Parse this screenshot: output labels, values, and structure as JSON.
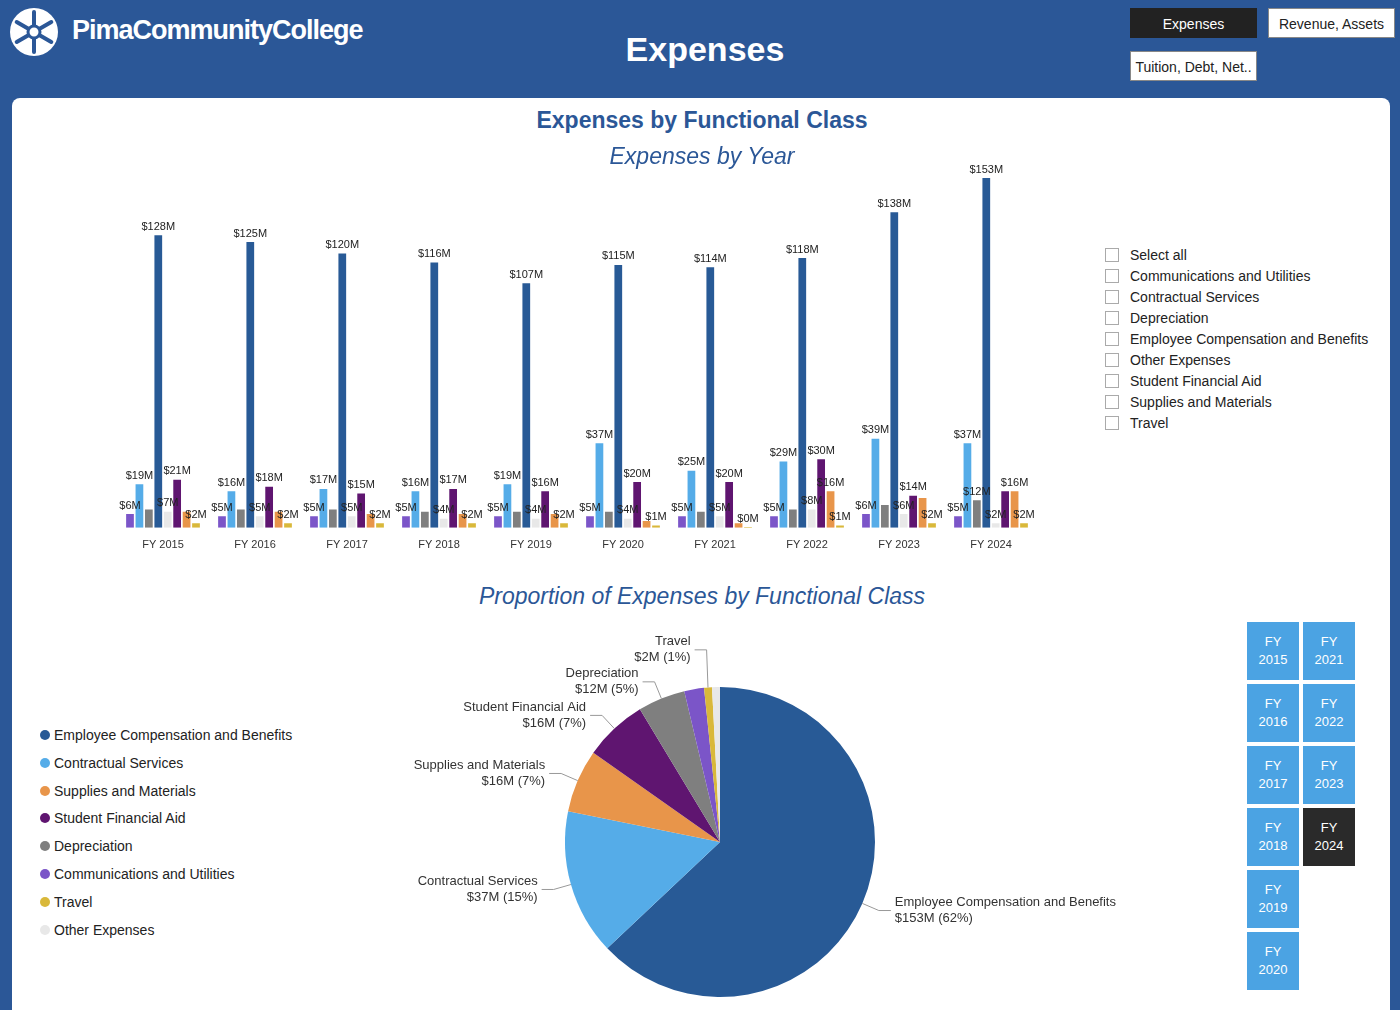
{
  "page": {
    "header": {
      "brand": "PimaCommunityCollege",
      "title": "Expenses"
    },
    "nav": [
      {
        "label": "Expenses",
        "active": true
      },
      {
        "label": "Revenue, Assets",
        "active": false
      },
      {
        "label": "Tuition, Debt, Net..",
        "active": false
      }
    ],
    "section_title": "Expenses by Functional Class",
    "filter": {
      "items": [
        "Select all",
        "Communications and Utilities",
        "Contractual Services",
        "Depreciation",
        "Employee Compensation and Benefits",
        "Other Expenses",
        "Student Financial Aid",
        "Supplies and Materials",
        "Travel"
      ]
    },
    "year_slicer": {
      "items": [
        "FY 2015",
        "FY 2016",
        "FY 2017",
        "FY 2018",
        "FY 2019",
        "FY 2020",
        "FY 2021",
        "FY 2022",
        "FY 2023",
        "FY 2024"
      ],
      "selected": "FY 2024"
    }
  },
  "chart_data": [
    {
      "type": "bar",
      "title": "Expenses by Year",
      "categories": [
        "FY 2015",
        "FY 2016",
        "FY 2017",
        "FY 2018",
        "FY 2019",
        "FY 2020",
        "FY 2021",
        "FY 2022",
        "FY 2023",
        "FY 2024"
      ],
      "series": [
        {
          "name": "Communications and Utilities",
          "color": "#7B55C8",
          "values": [
            6,
            5,
            5,
            5,
            5,
            5,
            5,
            5,
            6,
            5
          ],
          "value_labels": [
            "$6M",
            "$5M",
            "$5M",
            "$5M",
            "$5M",
            "$5M",
            "$5M",
            "$5M",
            "$6M",
            "$5M"
          ]
        },
        {
          "name": "Contractual Services",
          "color": "#55ACE8",
          "values": [
            19,
            16,
            17,
            16,
            19,
            37,
            25,
            29,
            39,
            37
          ],
          "value_labels": [
            "$19M",
            "$16M",
            "$17M",
            "$16M",
            "$19M",
            "$37M",
            "$25M",
            "$29M",
            "$39M",
            "$37M"
          ]
        },
        {
          "name": "Depreciation",
          "color": "#7F7F7F",
          "values": [
            8,
            8,
            8,
            7,
            7,
            7,
            7,
            8,
            10,
            12
          ],
          "value_labels": [
            null,
            null,
            null,
            null,
            null,
            null,
            null,
            null,
            null,
            "$12M"
          ]
        },
        {
          "name": "Employee Compensation and Benefits",
          "color": "#285A96",
          "values": [
            128,
            125,
            120,
            116,
            107,
            115,
            114,
            118,
            138,
            153
          ],
          "value_labels": [
            "$128M",
            "$125M",
            "$120M",
            "$116M",
            "$107M",
            "$115M",
            "$114M",
            "$118M",
            "$138M",
            "$153M"
          ]
        },
        {
          "name": "Other Expenses",
          "color": "#E8E8E8",
          "values": [
            7,
            5,
            5,
            4,
            4,
            4,
            5,
            8,
            6,
            2
          ],
          "value_labels": [
            "$7M",
            "$5M",
            "$5M",
            "$4M",
            "$4M",
            "$4M",
            "$5M",
            "$8M",
            "$6M",
            "$2M"
          ]
        },
        {
          "name": "Student Financial Aid",
          "color": "#5F1570",
          "values": [
            21,
            18,
            15,
            17,
            16,
            20,
            20,
            30,
            14,
            16
          ],
          "value_labels": [
            "$21M",
            "$18M",
            "$15M",
            "$17M",
            "$16M",
            "$20M",
            "$20M",
            "$30M",
            "$14M",
            null
          ]
        },
        {
          "name": "Supplies and Materials",
          "color": "#E8954A",
          "values": [
            7,
            7,
            6,
            6,
            6,
            3,
            2,
            16,
            13,
            16
          ],
          "value_labels": [
            null,
            null,
            null,
            null,
            null,
            null,
            null,
            "$16M",
            null,
            "$16M"
          ]
        },
        {
          "name": "Travel",
          "color": "#D9B83A",
          "values": [
            2,
            2,
            2,
            2,
            2,
            1,
            0.3,
            1,
            2,
            2
          ],
          "value_labels": [
            "$2M",
            "$2M",
            "$2M",
            "$2M",
            "$2M",
            "$1M",
            "$0M",
            "$1M",
            "$2M",
            "$2M"
          ]
        }
      ],
      "data_labels": true,
      "tick_labels": "x",
      "grid": false
    },
    {
      "type": "pie",
      "title": "Proportion of Expenses by Functional Class",
      "categories": [
        "Employee Compensation and Benefits",
        "Contractual Services",
        "Supplies and Materials",
        "Student Financial Aid",
        "Depreciation",
        "Communications and Utilities",
        "Travel",
        "Other Expenses"
      ],
      "values": [
        153,
        37,
        16,
        16,
        12,
        5,
        2,
        2
      ],
      "value_labels": [
        "$153M (62%)",
        "$37M (15%)",
        "$16M (7%)",
        "$16M (7%)",
        "$12M (5%)",
        null,
        "$2M (1%)",
        null
      ],
      "colors": [
        "#285A96",
        "#55ACE8",
        "#E8954A",
        "#5F1570",
        "#7F7F7F",
        "#7B55C8",
        "#D9B83A",
        "#E8E8E8"
      ],
      "data_labels": true,
      "legend": "left"
    }
  ]
}
